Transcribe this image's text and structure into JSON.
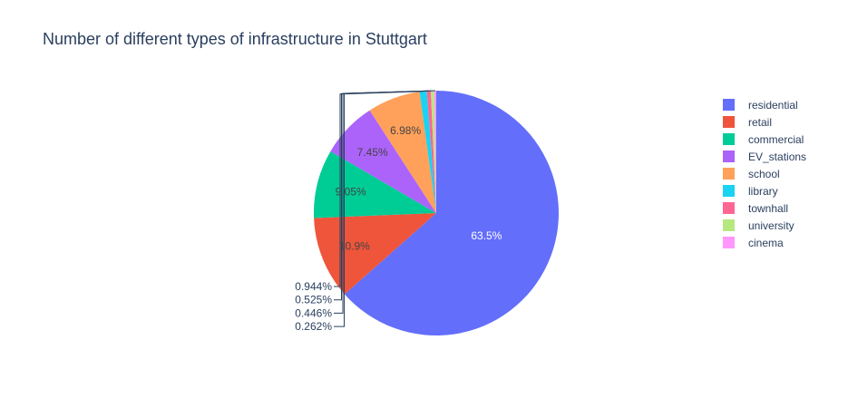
{
  "chart_data": {
    "type": "pie",
    "title": "Number of different types of infrastructure in Stuttgart",
    "legend_position": "right",
    "slices": [
      {
        "label": "residential",
        "percent": 63.5,
        "percent_text": "63.5%",
        "color": "#636efa",
        "label_color": "#ffffff"
      },
      {
        "label": "retail",
        "percent": 10.9,
        "percent_text": "10.9%",
        "color": "#ef553b",
        "label_color": "#444444"
      },
      {
        "label": "commercial",
        "percent": 9.05,
        "percent_text": "9.05%",
        "color": "#00cc96",
        "label_color": "#444444"
      },
      {
        "label": "EV_stations",
        "percent": 7.45,
        "percent_text": "7.45%",
        "color": "#ab63fa",
        "label_color": "#444444"
      },
      {
        "label": "school",
        "percent": 6.98,
        "percent_text": "6.98%",
        "color": "#ffa15a",
        "label_color": "#444444"
      },
      {
        "label": "library",
        "percent": 0.944,
        "percent_text": "0.944%",
        "color": "#19d3f3",
        "label_color": "#2a3f5f"
      },
      {
        "label": "townhall",
        "percent": 0.525,
        "percent_text": "0.525%",
        "color": "#ff6692",
        "label_color": "#2a3f5f"
      },
      {
        "label": "university",
        "percent": 0.446,
        "percent_text": "0.446%",
        "color": "#b6e880",
        "label_color": "#2a3f5f"
      },
      {
        "label": "cinema",
        "percent": 0.262,
        "percent_text": "0.262%",
        "color": "#ff97ff",
        "label_color": "#2a3f5f"
      }
    ]
  }
}
